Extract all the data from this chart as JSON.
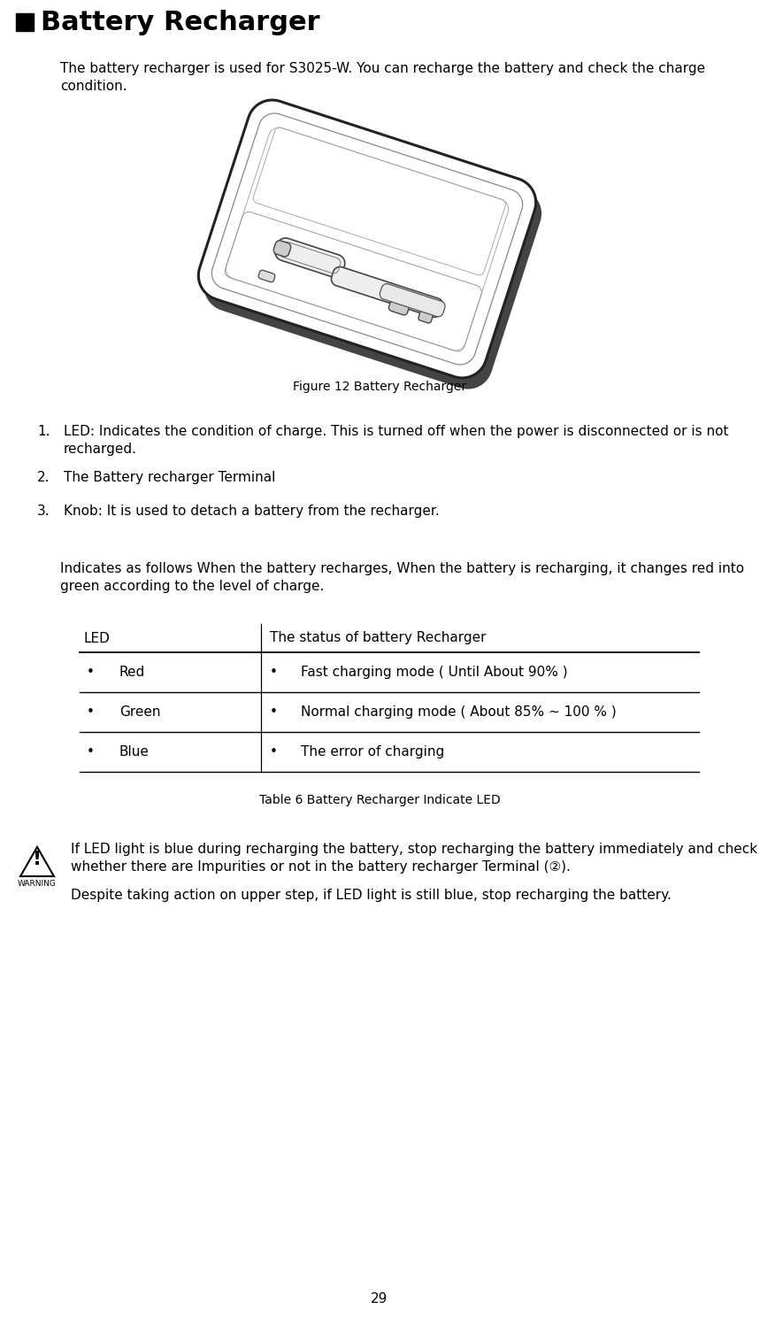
{
  "title": "Battery Recharger",
  "title_square_color": "#000000",
  "bg_color": "#ffffff",
  "text_color": "#000000",
  "page_number": "29",
  "intro_line1": "The battery recharger is used for S3025-W. You can recharge the battery and check the charge",
  "intro_line2": "condition.",
  "figure_caption_prefix": "Figure 12 ",
  "figure_caption_smallcaps": "Battery Recharger",
  "list_item1_line1": "LED: Indicates the condition of charge. This is turned off when the power is disconnected or is not",
  "list_item1_line2": "recharged.",
  "list_item2": "The Battery recharger Terminal",
  "list_item3": "Knob: It is used to detach a battery from the recharger.",
  "indicates_line1": "Indicates as follows When the battery recharges, When the battery is recharging, it changes red into",
  "indicates_line2": "green according to the level of charge.",
  "table_header_col1": "LED",
  "table_header_col2": "The status of battery Recharger",
  "table_rows": [
    [
      "Red",
      "Fast charging mode ( Until About 90% )"
    ],
    [
      "Green",
      "Normal charging mode ( About 85% ~ 100 % )"
    ],
    [
      "Blue",
      "The error of charging"
    ]
  ],
  "table_caption_prefix": "Table 6 ",
  "table_caption_smallcaps": "Battery Recharger Indicate LED",
  "warning_line1": "If LED light is blue during recharging the battery, stop recharging the battery immediately and check",
  "warning_line2": "whether there are Impurities or not in the battery recharger Terminal (②).",
  "warning_line3": "Despite taking action on upper step, if LED light is still blue, stop recharging the battery."
}
